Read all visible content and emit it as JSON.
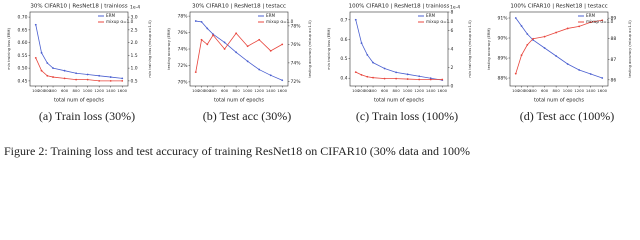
{
  "chart_data": [
    {
      "type": "line",
      "title": "30% CIFAR10 | ResNet18 | trainloss",
      "xlabel": "total num of epochs",
      "ylabel": "min training loss (ERM)",
      "y2label": "min training loss (mixup α=1.0)",
      "y2_offset_label": "1e-4",
      "subcaption": "(a) Train loss (30%)",
      "legend": "upper right",
      "x": [
        100,
        200,
        300,
        400,
        600,
        800,
        1000,
        1200,
        1400,
        1600
      ],
      "xlim": [
        0,
        1700
      ],
      "xticks": [
        100,
        200,
        300,
        400,
        600,
        800,
        1000,
        1200,
        1400,
        1600
      ],
      "ylim": [
        0.43,
        0.72
      ],
      "yticks": [
        0.45,
        {
          "value": 0.5,
          "label": "0.50"
        },
        0.55,
        {
          "value": 0.6,
          "label": "0.60"
        },
        0.65,
        {
          "value": 0.7,
          "label": "0.70"
        }
      ],
      "y2lim": [
        0.3,
        3.2
      ],
      "y2ticks": [
        0.5,
        {
          "value": 1,
          "label": "1.0"
        },
        1.5,
        {
          "value": 2,
          "label": "2.0"
        },
        2.5,
        {
          "value": 3,
          "label": "3.0"
        }
      ],
      "series": [
        {
          "name": "ERM",
          "color": "#4a5fd0",
          "axis": "y",
          "values": [
            0.67,
            0.56,
            0.52,
            0.5,
            0.49,
            0.48,
            0.475,
            0.47,
            0.465,
            0.46
          ]
        },
        {
          "name": "mixup α=1.0",
          "color": "#e8453c",
          "axis": "y2",
          "values": [
            1.4,
            0.9,
            0.7,
            0.65,
            0.6,
            0.55,
            0.55,
            0.5,
            0.5,
            0.5
          ]
        }
      ]
    },
    {
      "type": "line",
      "title": "30% CIFAR10 | ResNet18 | testacc",
      "xlabel": "total num of epochs",
      "ylabel": "testing accuracy (ERM)",
      "y2label": "testing accuracy (mixup α=1.0)",
      "subcaption": "(b) Test acc (30%)",
      "legend": "upper right",
      "x": [
        100,
        200,
        300,
        400,
        600,
        800,
        1000,
        1200,
        1400,
        1600
      ],
      "xlim": [
        0,
        1700
      ],
      "xticks": [
        100,
        200,
        300,
        400,
        600,
        800,
        1000,
        1200,
        1400,
        1600
      ],
      "ylim": [
        69.5,
        78.5
      ],
      "yticks": [
        {
          "value": 70,
          "label": "70%"
        },
        {
          "value": 72,
          "label": "72%"
        },
        {
          "value": 74,
          "label": "74%"
        },
        {
          "value": 76,
          "label": "76%"
        },
        {
          "value": 78,
          "label": "78%"
        }
      ],
      "y2lim": [
        71.5,
        79.5
      ],
      "y2ticks": [
        {
          "value": 72,
          "label": "72%"
        },
        {
          "value": 74,
          "label": "74%"
        },
        {
          "value": 76,
          "label": "76%"
        },
        {
          "value": 78,
          "label": "78%"
        }
      ],
      "series": [
        {
          "name": "ERM",
          "color": "#4a5fd0",
          "axis": "y",
          "values": [
            77.4,
            77.3,
            76.5,
            75.8,
            74.8,
            73.6,
            72.5,
            71.5,
            70.8,
            70.2
          ]
        },
        {
          "name": "mixup α=1.0",
          "color": "#e8453c",
          "axis": "y2",
          "values": [
            73,
            76.5,
            76,
            77,
            75.5,
            77.2,
            75.8,
            76.5,
            75.3,
            76
          ]
        }
      ]
    },
    {
      "type": "line",
      "title": "100% CIFAR10 | ResNet18 | trainloss",
      "xlabel": "total num of epochs",
      "ylabel": "min training loss (ERM)",
      "y2label": "min training loss (mixup α=1.0)",
      "y2_offset_label": "1e-4",
      "subcaption": "(c) Train loss (100%)",
      "legend": "upper right",
      "x": [
        100,
        200,
        300,
        400,
        600,
        800,
        1000,
        1200,
        1400,
        1600
      ],
      "xlim": [
        0,
        1700
      ],
      "xticks": [
        100,
        200,
        300,
        400,
        600,
        800,
        1000,
        1200,
        1400,
        1600
      ],
      "ylim": [
        0.36,
        0.74
      ],
      "yticks": [
        0.4,
        0.5,
        0.6,
        0.7
      ],
      "y2lim": [
        0,
        8
      ],
      "y2ticks": [
        0,
        2,
        4,
        6,
        8
      ],
      "series": [
        {
          "name": "ERM",
          "color": "#4a5fd0",
          "axis": "y",
          "values": [
            0.7,
            0.58,
            0.52,
            0.48,
            0.45,
            0.43,
            0.42,
            0.41,
            0.4,
            0.39
          ]
        },
        {
          "name": "mixup α=1.0",
          "color": "#e8453c",
          "axis": "y2",
          "values": [
            1.5,
            1.2,
            1,
            0.9,
            0.8,
            0.8,
            0.75,
            0.7,
            0.7,
            0.7
          ]
        }
      ]
    },
    {
      "type": "line",
      "title": "100% CIFAR10 | ResNet18 | testacc",
      "xlabel": "total num of epochs",
      "ylabel": "testing accuracy (ERM)",
      "y2label": "testing accuracy (mixup α=1.0)",
      "subcaption": "(d) Test acc (100%)",
      "legend": "upper right",
      "x": [
        100,
        200,
        300,
        400,
        600,
        800,
        1000,
        1200,
        1400,
        1600
      ],
      "xlim": [
        0,
        1700
      ],
      "xticks": [
        100,
        200,
        300,
        400,
        600,
        800,
        1000,
        1200,
        1400,
        1600
      ],
      "ylim": [
        87.6,
        91.3
      ],
      "yticks": [
        {
          "value": 88,
          "label": "88%"
        },
        {
          "value": 89,
          "label": "89%"
        },
        {
          "value": 90,
          "label": "90%"
        },
        {
          "value": 91,
          "label": "91%"
        }
      ],
      "y2lim": [
        85.7,
        89.3
      ],
      "y2ticks": [
        86,
        87,
        88,
        89
      ],
      "series": [
        {
          "name": "ERM",
          "color": "#4a5fd0",
          "axis": "y",
          "values": [
            91,
            90.6,
            90.2,
            89.9,
            89.5,
            89.1,
            88.7,
            88.4,
            88.2,
            88
          ]
        },
        {
          "name": "mixup α=1.0",
          "color": "#e8453c",
          "axis": "y2",
          "values": [
            86.3,
            87.2,
            87.7,
            88,
            88.1,
            88.3,
            88.5,
            88.6,
            88.8,
            88.9
          ]
        }
      ]
    }
  ],
  "caption": "Figure 2: Training loss and test accuracy of training ResNet18 on CIFAR10 (30% data and 100%"
}
